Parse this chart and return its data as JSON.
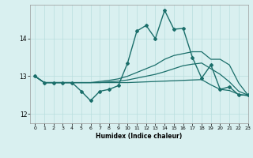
{
  "xlabel": "Humidex (Indice chaleur)",
  "bg_color": "#d9f0f0",
  "grid_color": "#b8dede",
  "line_color": "#1a6e6a",
  "xlim": [
    -0.5,
    23
  ],
  "ylim": [
    11.75,
    14.9
  ],
  "yticks": [
    12,
    13,
    14
  ],
  "xticks": [
    0,
    1,
    2,
    3,
    4,
    5,
    6,
    7,
    8,
    9,
    10,
    11,
    12,
    13,
    14,
    15,
    16,
    17,
    18,
    19,
    20,
    21,
    22,
    23
  ],
  "lines": [
    {
      "x": [
        0,
        1,
        2,
        3,
        4,
        5,
        6,
        7,
        8,
        9,
        10,
        11,
        12,
        13,
        14,
        15,
        16,
        17,
        18,
        19,
        20,
        21,
        22,
        23
      ],
      "y": [
        13.0,
        12.83,
        12.83,
        12.83,
        12.83,
        12.6,
        12.35,
        12.6,
        12.65,
        12.75,
        13.35,
        14.2,
        14.35,
        14.0,
        14.75,
        14.25,
        14.27,
        13.5,
        12.95,
        13.3,
        12.65,
        12.72,
        12.5,
        12.5
      ],
      "marker": "D",
      "markersize": 2.0,
      "linewidth": 1.0
    },
    {
      "x": [
        0,
        1,
        2,
        3,
        4,
        5,
        6,
        7,
        8,
        9,
        10,
        11,
        12,
        13,
        14,
        15,
        16,
        17,
        18,
        19,
        20,
        21,
        22,
        23
      ],
      "y": [
        13.0,
        12.83,
        12.83,
        12.83,
        12.83,
        12.83,
        12.83,
        12.86,
        12.89,
        12.93,
        13.0,
        13.1,
        13.2,
        13.3,
        13.45,
        13.55,
        13.6,
        13.65,
        13.65,
        13.45,
        13.45,
        13.3,
        12.82,
        12.5
      ],
      "marker": null,
      "markersize": 0,
      "linewidth": 0.9
    },
    {
      "x": [
        0,
        1,
        2,
        3,
        4,
        5,
        6,
        7,
        8,
        9,
        10,
        11,
        12,
        13,
        14,
        15,
        16,
        17,
        18,
        19,
        20,
        21,
        22,
        23
      ],
      "y": [
        13.0,
        12.83,
        12.83,
        12.83,
        12.83,
        12.83,
        12.83,
        12.83,
        12.85,
        12.87,
        12.9,
        12.95,
        13.0,
        13.05,
        13.12,
        13.2,
        13.28,
        13.32,
        13.35,
        13.2,
        13.05,
        12.85,
        12.6,
        12.5
      ],
      "marker": null,
      "markersize": 0,
      "linewidth": 0.9
    },
    {
      "x": [
        0,
        1,
        2,
        3,
        4,
        5,
        6,
        7,
        8,
        9,
        10,
        11,
        12,
        13,
        14,
        15,
        16,
        17,
        18,
        19,
        20,
        21,
        22,
        23
      ],
      "y": [
        13.0,
        12.83,
        12.83,
        12.83,
        12.83,
        12.83,
        12.83,
        12.83,
        12.83,
        12.83,
        12.83,
        12.84,
        12.85,
        12.86,
        12.87,
        12.88,
        12.89,
        12.9,
        12.91,
        12.77,
        12.65,
        12.62,
        12.52,
        12.48
      ],
      "marker": null,
      "markersize": 0,
      "linewidth": 0.9
    }
  ]
}
